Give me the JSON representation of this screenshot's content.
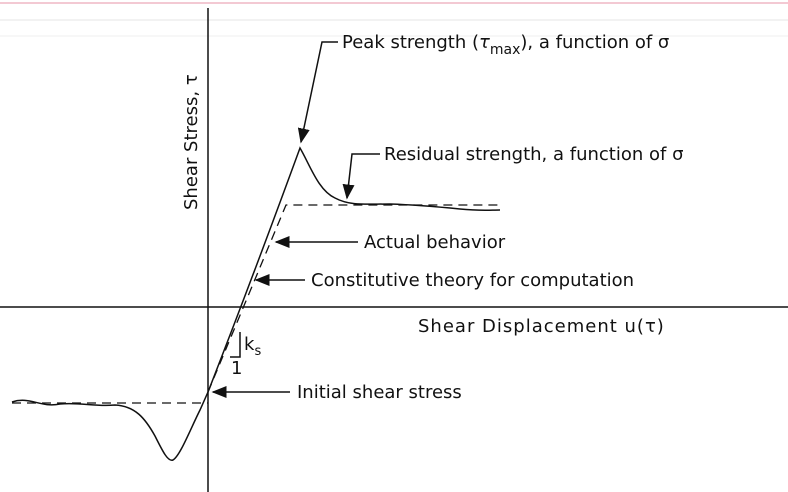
{
  "axes": {
    "y_label": "Shear Stress, τ",
    "x_label": "Shear Displacement  u(τ)"
  },
  "annotations": {
    "peak": {
      "before": "Peak strength (",
      "symbol": "τ",
      "subscript": "max",
      "after": "), a function of σ"
    },
    "residual": "Residual strength, a function of σ",
    "actual": "Actual behavior",
    "constitutive": "Constitutive theory for computation",
    "initial": "Initial shear stress",
    "slope": {
      "k": "k",
      "subscript": "s",
      "run": "1"
    }
  }
}
